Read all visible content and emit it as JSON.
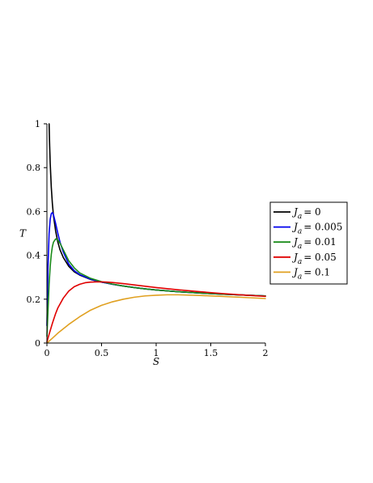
{
  "chart_data": {
    "type": "line",
    "title": "",
    "xlabel": "S",
    "ylabel": "T",
    "xlim": [
      0,
      2
    ],
    "ylim": [
      0,
      1
    ],
    "xticks": [
      {
        "value": 0,
        "label": "0"
      },
      {
        "value": 0.5,
        "label": "0.5"
      },
      {
        "value": 1,
        "label": "1"
      },
      {
        "value": 1.5,
        "label": "1.5"
      },
      {
        "value": 2,
        "label": "2"
      }
    ],
    "yticks": [
      {
        "value": 0,
        "label": "0"
      },
      {
        "value": 0.2,
        "label": "0.2"
      },
      {
        "value": 0.4,
        "label": "0.4"
      },
      {
        "value": 0.6,
        "label": "0.6"
      },
      {
        "value": 0.8,
        "label": "0.8"
      },
      {
        "value": 1,
        "label": "1"
      }
    ],
    "grid": false,
    "legend_position": "right",
    "series": [
      {
        "label_var": "J",
        "label_sub": "a",
        "label_value": "= 0",
        "color": "#000000",
        "x": [
          0.02,
          0.025,
          0.03,
          0.04,
          0.05,
          0.06,
          0.08,
          0.1,
          0.12,
          0.15,
          0.2,
          0.25,
          0.3,
          0.4,
          0.5,
          0.6,
          0.7,
          0.8,
          0.9,
          1,
          1.2,
          1.4,
          1.6,
          1.8,
          2
        ],
        "y": [
          1.0,
          0.9,
          0.82,
          0.71,
          0.635,
          0.58,
          0.51,
          0.46,
          0.425,
          0.39,
          0.35,
          0.325,
          0.31,
          0.29,
          0.278,
          0.268,
          0.26,
          0.253,
          0.247,
          0.242,
          0.234,
          0.228,
          0.223,
          0.219,
          0.215
        ]
      },
      {
        "label_var": "J",
        "label_sub": "a",
        "label_value": "= 0.005",
        "color": "#0000ee",
        "x": [
          0,
          0.01,
          0.02,
          0.03,
          0.04,
          0.05,
          0.06,
          0.08,
          0.1,
          0.12,
          0.15,
          0.2,
          0.25,
          0.3,
          0.4,
          0.5,
          0.6,
          0.7,
          0.8,
          0.9,
          1,
          1.2,
          1.4,
          1.6,
          1.8,
          2
        ],
        "y": [
          0.08,
          0.35,
          0.5,
          0.565,
          0.59,
          0.595,
          0.585,
          0.545,
          0.5,
          0.46,
          0.415,
          0.36,
          0.33,
          0.312,
          0.291,
          0.278,
          0.268,
          0.26,
          0.253,
          0.247,
          0.242,
          0.234,
          0.228,
          0.223,
          0.219,
          0.215
        ]
      },
      {
        "label_var": "J",
        "label_sub": "a",
        "label_value": "= 0.01",
        "color": "#1a8c1a",
        "x": [
          0,
          0.01,
          0.02,
          0.03,
          0.04,
          0.05,
          0.06,
          0.08,
          0.1,
          0.12,
          0.15,
          0.2,
          0.25,
          0.3,
          0.4,
          0.5,
          0.6,
          0.7,
          0.8,
          0.9,
          1,
          1.2,
          1.4,
          1.6,
          1.8,
          2
        ],
        "y": [
          0.03,
          0.15,
          0.27,
          0.35,
          0.405,
          0.44,
          0.46,
          0.475,
          0.47,
          0.455,
          0.425,
          0.375,
          0.343,
          0.32,
          0.295,
          0.28,
          0.269,
          0.26,
          0.253,
          0.247,
          0.242,
          0.234,
          0.228,
          0.223,
          0.219,
          0.215
        ]
      },
      {
        "label_var": "J",
        "label_sub": "a",
        "label_value": "= 0.05",
        "color": "#e00000",
        "x": [
          0,
          0.02,
          0.05,
          0.08,
          0.1,
          0.15,
          0.2,
          0.25,
          0.3,
          0.35,
          0.4,
          0.45,
          0.5,
          0.55,
          0.6,
          0.7,
          0.8,
          0.9,
          1,
          1.2,
          1.4,
          1.6,
          1.8,
          2
        ],
        "y": [
          0.005,
          0.04,
          0.09,
          0.135,
          0.16,
          0.205,
          0.237,
          0.257,
          0.268,
          0.275,
          0.278,
          0.279,
          0.279,
          0.278,
          0.276,
          0.271,
          0.265,
          0.259,
          0.253,
          0.243,
          0.234,
          0.226,
          0.219,
          0.213
        ]
      },
      {
        "label_var": "J",
        "label_sub": "a",
        "label_value": "= 0.1",
        "color": "#e0a020",
        "x": [
          0,
          0.05,
          0.1,
          0.15,
          0.2,
          0.3,
          0.4,
          0.5,
          0.6,
          0.7,
          0.8,
          0.9,
          1,
          1.1,
          1.2,
          1.4,
          1.6,
          1.8,
          2
        ],
        "y": [
          0,
          0.022,
          0.045,
          0.065,
          0.085,
          0.12,
          0.15,
          0.172,
          0.188,
          0.2,
          0.209,
          0.215,
          0.218,
          0.22,
          0.22,
          0.217,
          0.213,
          0.208,
          0.203
        ]
      }
    ]
  }
}
